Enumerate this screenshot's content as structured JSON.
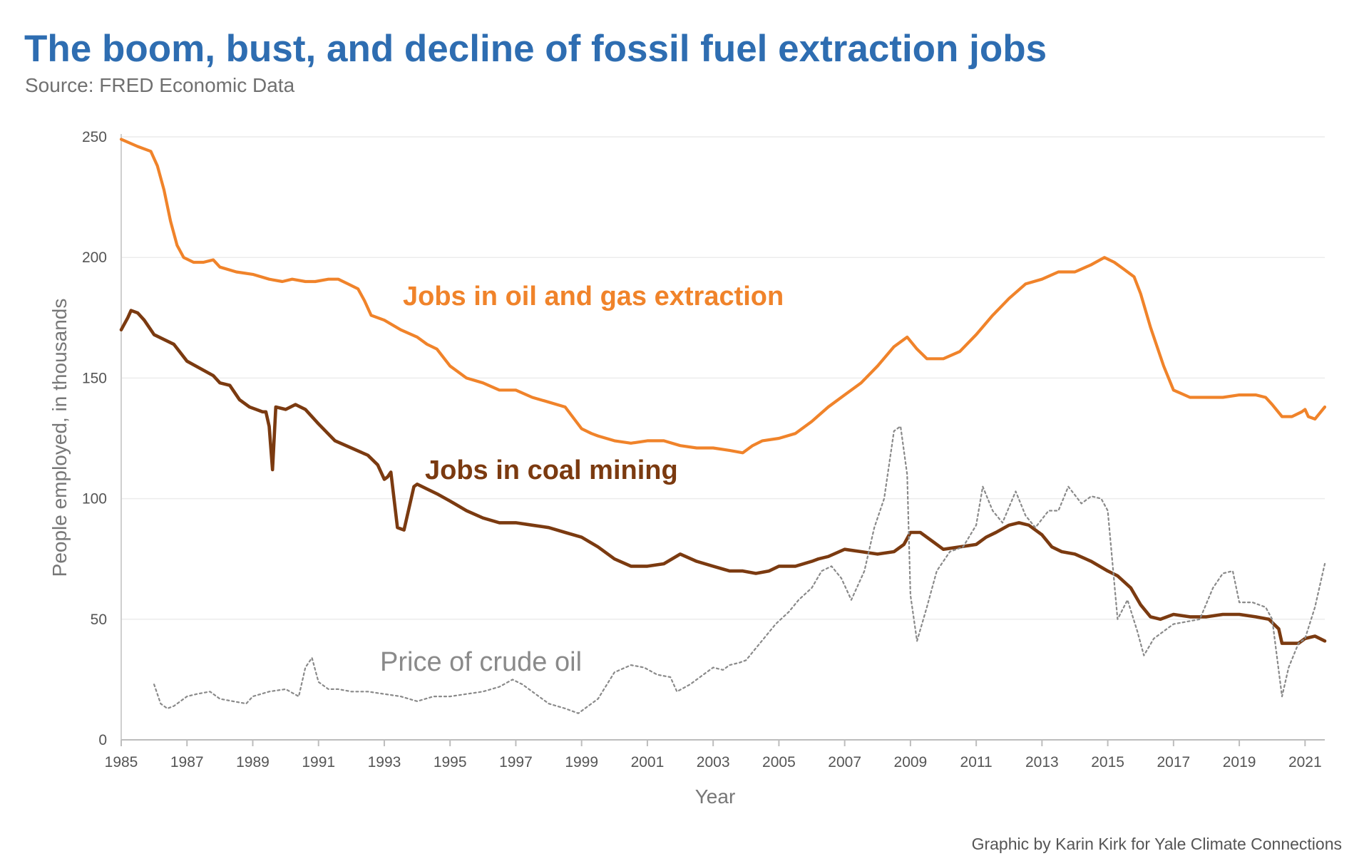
{
  "title": "The boom, bust, and decline of fossil fuel extraction jobs",
  "subtitle": "Source: FRED Economic Data",
  "credit": "Graphic by Karin Kirk for Yale Climate Connections",
  "chart_data": {
    "type": "line",
    "xlabel": "Year",
    "ylabel": "People employed, in thousands",
    "xlim": [
      1985,
      2021.6
    ],
    "ylim": [
      0,
      250
    ],
    "x_ticks": [
      "1985",
      "1987",
      "1989",
      "1991",
      "1993",
      "1995",
      "1997",
      "1999",
      "2001",
      "2003",
      "2005",
      "2007",
      "2009",
      "2011",
      "2013",
      "2015",
      "2017",
      "2019",
      "2021"
    ],
    "y_ticks": [
      "0",
      "50",
      "100",
      "150",
      "200",
      "250"
    ],
    "grid": "horizontal",
    "colors": {
      "oil_gas": "#f0832a",
      "coal": "#7b3a10",
      "crude": "#8a8a8a",
      "title": "#2e6db1"
    },
    "series": [
      {
        "name": "Jobs in oil and gas extraction",
        "x": [
          1985.0,
          1985.5,
          1985.9,
          1986.1,
          1986.3,
          1986.5,
          1986.7,
          1986.9,
          1987.2,
          1987.5,
          1987.8,
          1988.0,
          1988.5,
          1989.0,
          1989.5,
          1989.9,
          1990.2,
          1990.6,
          1990.9,
          1991.3,
          1991.6,
          1991.9,
          1992.2,
          1992.4,
          1992.6,
          1993.0,
          1993.5,
          1994.0,
          1994.3,
          1994.6,
          1995.0,
          1995.5,
          1996.0,
          1996.5,
          1997.0,
          1997.5,
          1998.0,
          1998.5,
          1999.0,
          1999.3,
          1999.5,
          2000.0,
          2000.5,
          2001.0,
          2001.5,
          2002.0,
          2002.5,
          2003.0,
          2003.5,
          2003.9,
          2004.2,
          2004.5,
          2005.0,
          2005.5,
          2006.0,
          2006.5,
          2007.0,
          2007.5,
          2008.0,
          2008.5,
          2008.9,
          2009.2,
          2009.5,
          2010.0,
          2010.5,
          2011.0,
          2011.5,
          2012.0,
          2012.5,
          2013.0,
          2013.5,
          2014.0,
          2014.5,
          2014.9,
          2015.2,
          2015.5,
          2015.8,
          2016.0,
          2016.3,
          2016.7,
          2017.0,
          2017.5,
          2018.0,
          2018.5,
          2019.0,
          2019.5,
          2019.8,
          2020.0,
          2020.3,
          2020.6,
          2020.9,
          2021.0,
          2021.1,
          2021.3,
          2021.6
        ],
        "values": [
          249,
          246,
          244,
          238,
          228,
          215,
          205,
          200,
          198,
          198,
          199,
          196,
          194,
          193,
          191,
          190,
          191,
          190,
          190,
          191,
          191,
          189,
          187,
          182,
          176,
          174,
          170,
          167,
          164,
          162,
          155,
          150,
          148,
          145,
          145,
          142,
          140,
          138,
          129,
          127,
          126,
          124,
          123,
          124,
          124,
          122,
          121,
          121,
          120,
          119,
          122,
          124,
          125,
          127,
          132,
          138,
          143,
          148,
          155,
          163,
          167,
          162,
          158,
          158,
          161,
          168,
          176,
          183,
          189,
          191,
          194,
          194,
          197,
          200,
          198,
          195,
          192,
          185,
          171,
          155,
          145,
          142,
          142,
          142,
          143,
          143,
          142,
          139,
          134,
          134,
          136,
          137,
          134,
          133,
          138
        ]
      },
      {
        "name": "Jobs in coal mining",
        "x": [
          1985.0,
          1985.2,
          1985.3,
          1985.5,
          1985.7,
          1985.9,
          1986.0,
          1986.3,
          1986.6,
          1987.0,
          1987.4,
          1987.8,
          1988.0,
          1988.3,
          1988.6,
          1988.9,
          1989.1,
          1989.3,
          1989.4,
          1989.5,
          1989.6,
          1989.7,
          1990.0,
          1990.3,
          1990.6,
          1991.0,
          1991.5,
          1992.0,
          1992.5,
          1992.8,
          1993.0,
          1993.1,
          1993.2,
          1993.4,
          1993.6,
          1993.9,
          1994.0,
          1994.3,
          1994.6,
          1995.0,
          1995.5,
          1996.0,
          1996.5,
          1997.0,
          1997.5,
          1998.0,
          1998.5,
          1999.0,
          1999.5,
          2000.0,
          2000.5,
          2001.0,
          2001.5,
          2002.0,
          2002.5,
          2003.0,
          2003.5,
          2003.9,
          2004.3,
          2004.7,
          2005.0,
          2005.5,
          2006.0,
          2006.2,
          2006.5,
          2007.0,
          2007.5,
          2008.0,
          2008.5,
          2008.8,
          2009.0,
          2009.3,
          2009.7,
          2010.0,
          2010.5,
          2011.0,
          2011.3,
          2011.6,
          2012.0,
          2012.3,
          2012.6,
          2013.0,
          2013.3,
          2013.6,
          2014.0,
          2014.5,
          2015.0,
          2015.3,
          2015.7,
          2016.0,
          2016.3,
          2016.6,
          2017.0,
          2017.5,
          2018.0,
          2018.5,
          2019.0,
          2019.5,
          2019.9,
          2020.2,
          2020.3,
          2020.5,
          2020.8,
          2021.0,
          2021.3,
          2021.6
        ],
        "values": [
          170,
          175,
          178,
          177,
          174,
          170,
          168,
          166,
          164,
          157,
          154,
          151,
          148,
          147,
          141,
          138,
          137,
          136,
          136,
          130,
          112,
          138,
          137,
          139,
          137,
          131,
          124,
          121,
          118,
          114,
          108,
          109,
          111,
          88,
          87,
          105,
          106,
          104,
          102,
          99,
          95,
          92,
          90,
          90,
          89,
          88,
          86,
          84,
          80,
          75,
          72,
          72,
          73,
          77,
          74,
          72,
          70,
          70,
          69,
          70,
          72,
          72,
          74,
          75,
          76,
          79,
          78,
          77,
          78,
          81,
          86,
          86,
          82,
          79,
          80,
          81,
          84,
          86,
          89,
          90,
          89,
          85,
          80,
          78,
          77,
          74,
          70,
          68,
          63,
          56,
          51,
          50,
          52,
          51,
          51,
          52,
          52,
          51,
          50,
          46,
          40,
          40,
          40,
          42,
          43,
          41
        ]
      },
      {
        "name": "Price of crude oil",
        "x": [
          1986.0,
          1986.2,
          1986.4,
          1986.6,
          1986.8,
          1987.0,
          1987.3,
          1987.7,
          1988.0,
          1988.4,
          1988.8,
          1989.0,
          1989.5,
          1990.0,
          1990.4,
          1990.6,
          1990.8,
          1991.0,
          1991.3,
          1991.6,
          1992.0,
          1992.5,
          1993.0,
          1993.5,
          1994.0,
          1994.5,
          1995.0,
          1995.5,
          1996.0,
          1996.5,
          1996.9,
          1997.2,
          1997.5,
          1998.0,
          1998.5,
          1998.9,
          1999.1,
          1999.5,
          2000.0,
          2000.5,
          2000.9,
          2001.3,
          2001.7,
          2001.9,
          2002.3,
          2002.7,
          2003.0,
          2003.3,
          2003.5,
          2003.8,
          2004.0,
          2004.3,
          2004.6,
          2004.9,
          2005.3,
          2005.6,
          2006.0,
          2006.3,
          2006.6,
          2006.9,
          2007.2,
          2007.6,
          2007.9,
          2008.2,
          2008.5,
          2008.7,
          2008.9,
          2009.0,
          2009.2,
          2009.5,
          2009.8,
          2010.2,
          2010.6,
          2011.0,
          2011.2,
          2011.5,
          2011.8,
          2012.2,
          2012.5,
          2012.8,
          2013.2,
          2013.5,
          2013.8,
          2014.2,
          2014.5,
          2014.8,
          2015.0,
          2015.3,
          2015.6,
          2015.9,
          2016.1,
          2016.4,
          2016.8,
          2017.0,
          2017.4,
          2017.8,
          2018.2,
          2018.5,
          2018.8,
          2019.0,
          2019.4,
          2019.8,
          2020.0,
          2020.3,
          2020.5,
          2020.8,
          2021.0,
          2021.3,
          2021.6
        ],
        "values": [
          23,
          15,
          13,
          14,
          16,
          18,
          19,
          20,
          17,
          16,
          15,
          18,
          20,
          21,
          18,
          30,
          34,
          24,
          21,
          21,
          20,
          20,
          19,
          18,
          16,
          18,
          18,
          19,
          20,
          22,
          25,
          23,
          20,
          15,
          13,
          11,
          13,
          17,
          28,
          31,
          30,
          27,
          26,
          20,
          23,
          27,
          30,
          29,
          31,
          32,
          33,
          38,
          43,
          48,
          53,
          58,
          63,
          70,
          72,
          67,
          58,
          70,
          88,
          100,
          128,
          130,
          110,
          60,
          41,
          55,
          70,
          78,
          80,
          89,
          105,
          95,
          90,
          103,
          93,
          88,
          95,
          95,
          105,
          98,
          101,
          100,
          95,
          50,
          58,
          45,
          35,
          42,
          46,
          48,
          49,
          50,
          63,
          69,
          70,
          57,
          57,
          55,
          50,
          18,
          30,
          40,
          42,
          55,
          73
        ]
      }
    ]
  }
}
